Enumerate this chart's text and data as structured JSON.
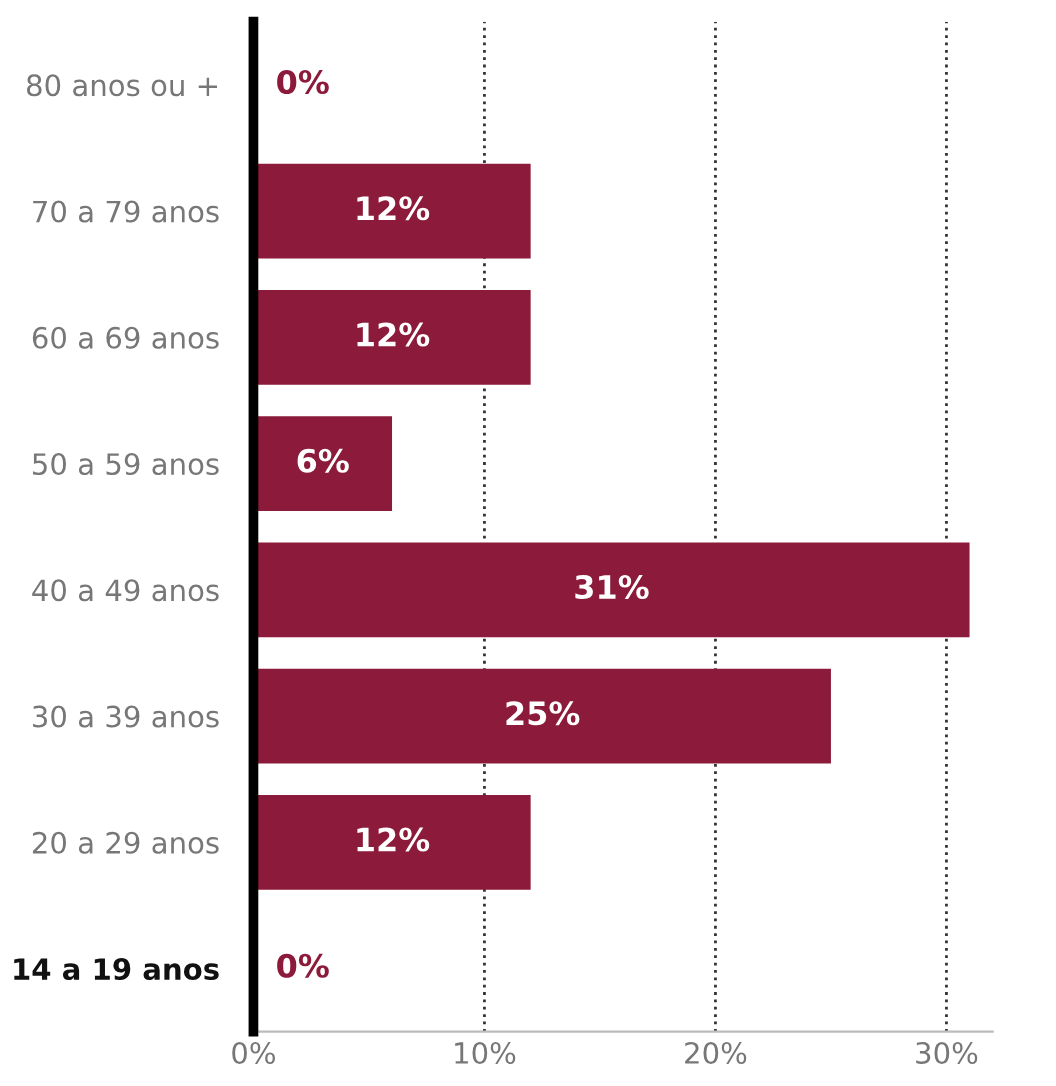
{
  "chart_data": {
    "type": "bar",
    "orientation": "horizontal",
    "categories": [
      "80 anos ou +",
      "70 a 79 anos",
      "60 a 69 anos",
      "50 a 59 anos",
      "40 a 49 anos",
      "30 a 39 anos",
      "20 a 29 anos",
      "14 a 19 anos"
    ],
    "values": [
      0,
      12,
      12,
      6,
      31,
      25,
      12,
      0
    ],
    "color": "#8c1a3a",
    "value_labels": [
      "0%",
      "12%",
      "12%",
      "6%",
      "31%",
      "25%",
      "12%",
      "0%"
    ],
    "xlim": [
      0,
      32
    ],
    "xticks": [
      {
        "value": 0,
        "label": "0%"
      },
      {
        "value": 10,
        "label": "10%"
      },
      {
        "value": 20,
        "label": "20%"
      },
      {
        "value": 30,
        "label": "30%"
      }
    ],
    "grid": "x",
    "line_style": "dotted"
  }
}
